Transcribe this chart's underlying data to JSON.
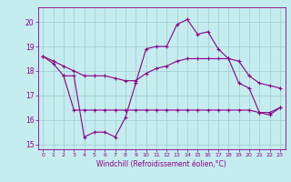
{
  "xlabel": "Windchill (Refroidissement éolien,°C)",
  "bg_color": "#c5ecee",
  "grid_color": "#9dcdd4",
  "line_color": "#8b008b",
  "xlim": [
    -0.5,
    23.5
  ],
  "ylim": [
    14.8,
    20.6
  ],
  "yticks": [
    15,
    16,
    17,
    18,
    19,
    20
  ],
  "xticks": [
    0,
    1,
    2,
    3,
    4,
    5,
    6,
    7,
    8,
    9,
    10,
    11,
    12,
    13,
    14,
    15,
    16,
    17,
    18,
    19,
    20,
    21,
    22,
    23
  ],
  "series1_x": [
    0,
    1,
    2,
    3,
    4,
    5,
    6,
    7,
    8,
    9,
    10,
    11,
    12,
    13,
    14,
    15,
    16,
    17,
    18,
    19,
    20,
    21,
    22,
    23
  ],
  "series1_y": [
    18.6,
    18.3,
    17.8,
    17.8,
    15.3,
    15.5,
    15.5,
    15.3,
    16.1,
    17.5,
    18.9,
    19.0,
    19.0,
    19.9,
    20.1,
    19.5,
    19.6,
    18.9,
    18.5,
    17.5,
    17.3,
    16.3,
    16.3,
    16.5
  ],
  "series2_x": [
    0,
    1,
    2,
    3,
    4,
    5,
    6,
    7,
    8,
    9,
    10,
    11,
    12,
    13,
    14,
    15,
    16,
    17,
    18,
    19,
    20,
    21,
    22,
    23
  ],
  "series2_y": [
    18.6,
    18.4,
    18.2,
    18.0,
    17.8,
    17.8,
    17.8,
    17.7,
    17.6,
    17.6,
    17.9,
    18.1,
    18.2,
    18.4,
    18.5,
    18.5,
    18.5,
    18.5,
    18.5,
    18.4,
    17.8,
    17.5,
    17.4,
    17.3
  ],
  "series3_x": [
    2,
    3,
    4,
    5,
    6,
    7,
    8,
    9,
    10,
    11,
    12,
    13,
    14,
    15,
    16,
    17,
    18,
    19,
    20,
    21,
    22,
    23
  ],
  "series3_y": [
    17.8,
    16.4,
    16.4,
    16.4,
    16.4,
    16.4,
    16.4,
    16.4,
    16.4,
    16.4,
    16.4,
    16.4,
    16.4,
    16.4,
    16.4,
    16.4,
    16.4,
    16.4,
    16.4,
    16.3,
    16.2,
    16.5
  ]
}
